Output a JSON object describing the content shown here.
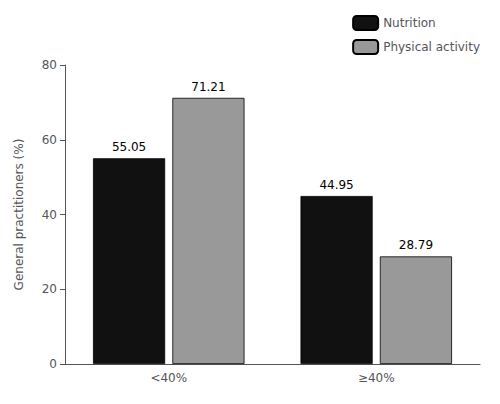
{
  "chart_data": {
    "type": "bar",
    "categories": [
      "<40%",
      "≥40%"
    ],
    "series": [
      {
        "name": "Nutrition",
        "color": "#111111",
        "values": [
          55.05,
          44.95
        ]
      },
      {
        "name": "Physical activity",
        "color": "#999999",
        "values": [
          71.21,
          28.79
        ]
      }
    ],
    "ylabel": "General practitioners (%)",
    "ylim": [
      0,
      80
    ],
    "yticks": [
      0,
      20,
      40,
      60,
      80
    ],
    "grid": false,
    "legend": "upper right",
    "data_labels": true
  }
}
